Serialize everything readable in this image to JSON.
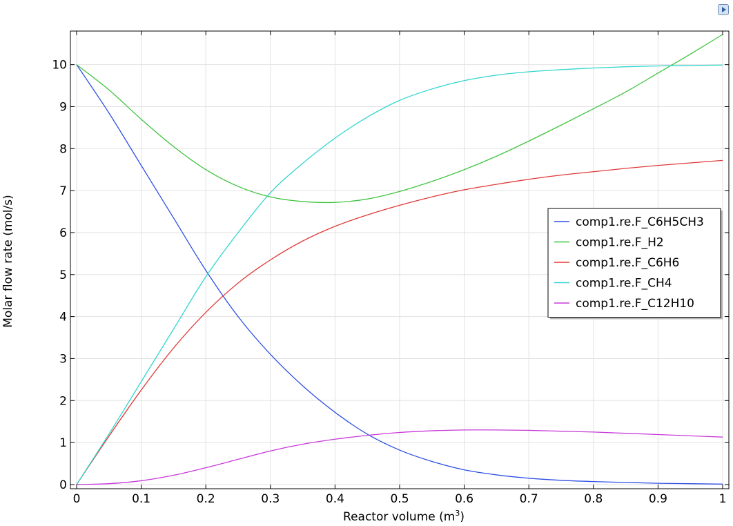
{
  "chart_data": {
    "type": "line",
    "xlabel": "Reactor volume (m",
    "xlabel_sup": "3",
    "xlabel_end": ")",
    "ylabel": "Molar flow rate (mol/s)",
    "xlim": [
      0,
      1
    ],
    "ylim": [
      -0.1,
      10.8
    ],
    "x_ticks": [
      0,
      0.1,
      0.2,
      0.3,
      0.4,
      0.5,
      0.6,
      0.7,
      0.8,
      0.9,
      1
    ],
    "x_tick_labels": [
      "0",
      "0.1",
      "0.2",
      "0.3",
      "0.4",
      "0.5",
      "0.6",
      "0.7",
      "0.8",
      "0.9",
      "1"
    ],
    "y_ticks": [
      0,
      1,
      2,
      3,
      4,
      5,
      6,
      7,
      8,
      9,
      10
    ],
    "y_tick_labels": [
      "0",
      "1",
      "2",
      "3",
      "4",
      "5",
      "6",
      "7",
      "8",
      "9",
      "10"
    ],
    "grid": true,
    "legend_position": "right",
    "x": [
      0,
      0.05,
      0.1,
      0.15,
      0.2,
      0.25,
      0.3,
      0.35,
      0.4,
      0.45,
      0.5,
      0.55,
      0.6,
      0.65,
      0.7,
      0.75,
      0.8,
      0.85,
      0.9,
      0.95,
      1.0
    ],
    "series": [
      {
        "name": "comp1.re.F_C6H5CH3",
        "color": "#2e4fe6",
        "values": [
          10.0,
          8.85,
          7.6,
          6.35,
          5.1,
          4.0,
          3.1,
          2.35,
          1.72,
          1.2,
          0.82,
          0.55,
          0.35,
          0.23,
          0.15,
          0.1,
          0.07,
          0.05,
          0.03,
          0.02,
          0.01
        ]
      },
      {
        "name": "comp1.re.F_H2",
        "color": "#3ec43e",
        "values": [
          10.0,
          9.4,
          8.7,
          8.05,
          7.5,
          7.1,
          6.85,
          6.74,
          6.72,
          6.8,
          6.98,
          7.22,
          7.5,
          7.82,
          8.18,
          8.56,
          8.95,
          9.35,
          9.8,
          10.25,
          10.72
        ]
      },
      {
        "name": "comp1.re.F_C6H6",
        "color": "#e03a3a",
        "values": [
          0.0,
          1.15,
          2.25,
          3.25,
          4.1,
          4.8,
          5.35,
          5.8,
          6.15,
          6.42,
          6.65,
          6.85,
          7.02,
          7.15,
          7.27,
          7.37,
          7.45,
          7.53,
          7.6,
          7.66,
          7.72
        ]
      },
      {
        "name": "comp1.re.F_CH4",
        "color": "#30d5cd",
        "values": [
          0.0,
          1.2,
          2.45,
          3.7,
          4.95,
          6.0,
          6.95,
          7.65,
          8.25,
          8.75,
          9.15,
          9.42,
          9.62,
          9.75,
          9.83,
          9.88,
          9.92,
          9.95,
          9.97,
          9.98,
          9.99
        ]
      },
      {
        "name": "comp1.re.F_C12H10",
        "color": "#c63ad8",
        "values": [
          0.0,
          0.02,
          0.09,
          0.22,
          0.4,
          0.6,
          0.8,
          0.96,
          1.08,
          1.17,
          1.24,
          1.28,
          1.3,
          1.3,
          1.29,
          1.27,
          1.25,
          1.22,
          1.19,
          1.16,
          1.13
        ]
      }
    ]
  }
}
